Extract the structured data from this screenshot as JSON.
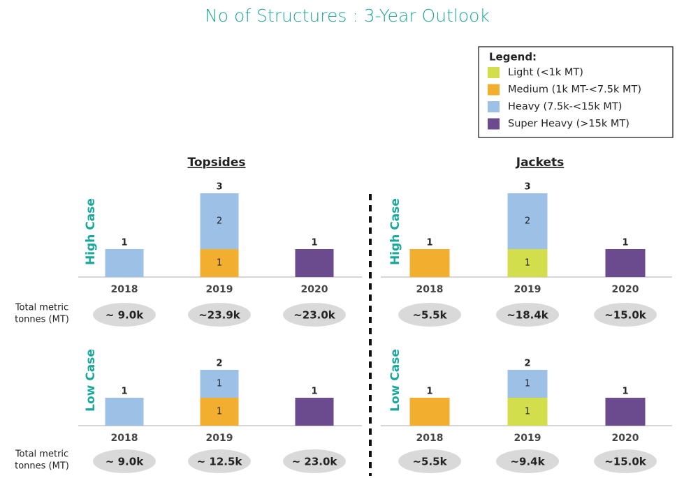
{
  "title": "No of Structures : 3-Year Outlook",
  "legend": {
    "title": "Legend:",
    "items": [
      {
        "name": "Light (<1k MT)",
        "color": "#d3de4c"
      },
      {
        "name": "Medium (1k MT-<7.5k MT)",
        "color": "#f2af2f"
      },
      {
        "name": "Heavy (7.5k-<15k MT)",
        "color": "#9dc0e6"
      },
      {
        "name": "Super Heavy (>15k MT)",
        "color": "#6b4a8e"
      }
    ]
  },
  "columns": [
    "Topsides",
    "Jackets"
  ],
  "tonnes_label": [
    "Total metric",
    "tonnes (MT)"
  ],
  "chart_data": [
    {
      "type": "bar",
      "stacked": true,
      "ylabel": "High Case",
      "categories": [
        "2018",
        "2019",
        "2020"
      ],
      "series": [
        {
          "values": [
            null,
            null,
            null
          ]
        },
        {
          "values": [
            null,
            1,
            null
          ]
        },
        {
          "values": [
            1,
            2,
            null
          ]
        },
        {
          "values": [
            null,
            null,
            1
          ]
        }
      ],
      "totals": [
        1,
        3,
        1
      ],
      "tonnage_labels": [
        "~ 9.0k",
        "~23.9k",
        "~23.0k"
      ],
      "ylim": [
        0,
        3.5
      ]
    },
    {
      "type": "bar",
      "stacked": true,
      "ylabel": "High Case",
      "categories": [
        "2018",
        "2019",
        "2020"
      ],
      "series": [
        {
          "values": [
            null,
            1,
            null
          ]
        },
        {
          "values": [
            1,
            null,
            null
          ]
        },
        {
          "values": [
            null,
            2,
            null
          ]
        },
        {
          "values": [
            null,
            null,
            1
          ]
        }
      ],
      "totals": [
        1,
        3,
        1
      ],
      "tonnage_labels": [
        "~5.5k",
        "~18.4k",
        "~15.0k"
      ],
      "ylim": [
        0,
        3.5
      ]
    },
    {
      "type": "bar",
      "stacked": true,
      "ylabel": "Low Case",
      "categories": [
        "2018",
        "2019",
        null
      ],
      "series": [
        {
          "values": [
            null,
            null,
            null
          ]
        },
        {
          "values": [
            null,
            1,
            null
          ]
        },
        {
          "values": [
            1,
            1,
            null
          ]
        },
        {
          "values": [
            null,
            null,
            1
          ]
        }
      ],
      "totals": [
        1,
        2,
        1
      ],
      "tonnage_labels": [
        "~ 9.0k",
        "~ 12.5k",
        "~ 23.0k"
      ],
      "ylim": [
        0,
        3.5
      ]
    },
    {
      "type": "bar",
      "stacked": true,
      "ylabel": "Low Case",
      "categories": [
        "2018",
        "2019",
        "2020"
      ],
      "series": [
        {
          "values": [
            null,
            1,
            null
          ]
        },
        {
          "values": [
            1,
            null,
            null
          ]
        },
        {
          "values": [
            null,
            1,
            null
          ]
        },
        {
          "values": [
            null,
            null,
            1
          ]
        }
      ],
      "totals": [
        1,
        2,
        1
      ],
      "tonnage_labels": [
        "~5.5k",
        "~9.4k",
        "~15.0k"
      ],
      "ylim": [
        0,
        3.5
      ]
    }
  ]
}
